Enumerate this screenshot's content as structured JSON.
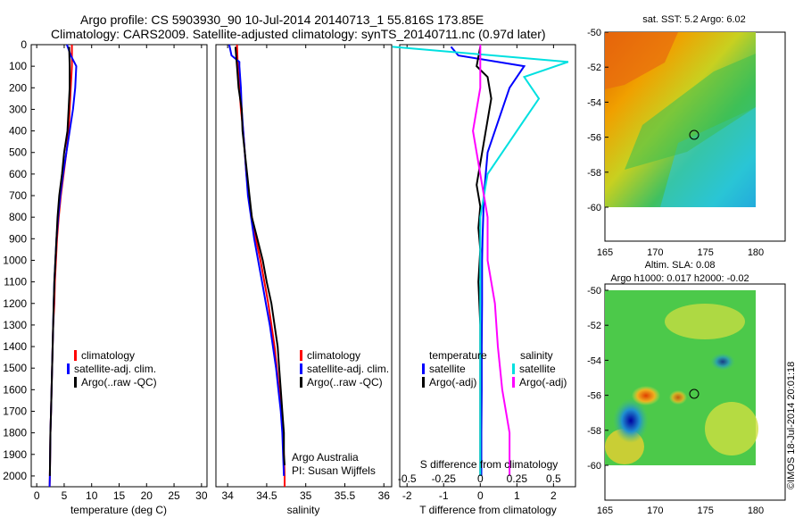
{
  "header": {
    "line1": "Argo profile: CS 5903930_90 10-Jul-2014 20140713_1 55.816S 173.85E",
    "line2": "Climatology: CARS2009. Satellite-adjusted climatology: synTS_20140711.nc (0.97d later)"
  },
  "colors": {
    "climatology": "#ff0000",
    "satellite": "#0000ff",
    "argo": "#000000",
    "sat_diff_s": "#00e0e0",
    "argo_diff_s": "#ff00ff"
  },
  "chart_data": [
    {
      "type": "line",
      "xlabel": "temperature (deg C)",
      "ylim": [
        2050,
        0
      ],
      "xlim": [
        -1,
        31
      ],
      "xticks": [
        0,
        5,
        10,
        15,
        20,
        25,
        30
      ],
      "yticks": [
        0,
        100,
        200,
        300,
        400,
        500,
        600,
        700,
        800,
        900,
        1000,
        1100,
        1200,
        1300,
        1400,
        1500,
        1600,
        1700,
        1800,
        1900,
        2000
      ],
      "legend": [
        "climatology",
        "satellite-adj. clim.",
        "Argo(..raw -QC)"
      ],
      "series": [
        {
          "name": "climatology",
          "color": "#ff0000",
          "points": [
            [
              6.4,
              0
            ],
            [
              6.4,
              100
            ],
            [
              6.2,
              200
            ],
            [
              6.0,
              300
            ],
            [
              5.8,
              400
            ],
            [
              5.4,
              500
            ],
            [
              4.9,
              600
            ],
            [
              4.4,
              700
            ],
            [
              4.0,
              800
            ],
            [
              3.7,
              900
            ],
            [
              3.5,
              1000
            ],
            [
              3.3,
              1100
            ],
            [
              3.2,
              1200
            ],
            [
              3.0,
              1300
            ],
            [
              2.9,
              1400
            ],
            [
              2.8,
              1500
            ],
            [
              2.7,
              1600
            ],
            [
              2.6,
              1700
            ],
            [
              2.5,
              1800
            ],
            [
              2.45,
              1900
            ],
            [
              2.4,
              2000
            ],
            [
              2.35,
              2050
            ]
          ]
        },
        {
          "name": "satellite-adj. clim.",
          "color": "#0000ff",
          "points": [
            [
              5.5,
              0
            ],
            [
              6.2,
              50
            ],
            [
              7.2,
              100
            ],
            [
              7.0,
              200
            ],
            [
              6.6,
              300
            ],
            [
              6.0,
              400
            ],
            [
              5.4,
              500
            ],
            [
              4.8,
              600
            ],
            [
              4.3,
              700
            ],
            [
              3.9,
              800
            ],
            [
              3.6,
              900
            ],
            [
              3.4,
              1000
            ],
            [
              3.2,
              1100
            ],
            [
              3.1,
              1200
            ],
            [
              3.0,
              1300
            ],
            [
              2.9,
              1400
            ],
            [
              2.8,
              1500
            ],
            [
              2.7,
              1600
            ],
            [
              2.6,
              1700
            ],
            [
              2.5,
              1800
            ],
            [
              2.45,
              1900
            ],
            [
              2.4,
              2000
            ],
            [
              2.35,
              2050
            ]
          ]
        },
        {
          "name": "Argo(..raw -QC)",
          "color": "#000000",
          "points": [
            [
              5.9,
              10
            ],
            [
              6.0,
              100
            ],
            [
              6.0,
              200
            ],
            [
              5.8,
              300
            ],
            [
              5.6,
              400
            ],
            [
              5.0,
              500
            ],
            [
              4.6,
              600
            ],
            [
              4.1,
              700
            ],
            [
              3.8,
              800
            ],
            [
              3.6,
              900
            ],
            [
              3.4,
              1000
            ],
            [
              3.2,
              1100
            ],
            [
              3.1,
              1200
            ],
            [
              3.0,
              1300
            ],
            [
              2.9,
              1400
            ],
            [
              2.8,
              1500
            ],
            [
              2.7,
              1600
            ],
            [
              2.6,
              1700
            ],
            [
              2.5,
              1800
            ],
            [
              2.45,
              1900
            ],
            [
              2.4,
              2000
            ]
          ]
        }
      ]
    },
    {
      "type": "line",
      "xlabel": "salinity",
      "ylim": [
        2050,
        0
      ],
      "xlim": [
        33.85,
        36.1
      ],
      "xticks": [
        34,
        34.5,
        35,
        35.5,
        36
      ],
      "legend": [
        "climatology",
        "satellite-adj. clim.",
        "Argo(..raw -QC)"
      ],
      "annotations": [
        "Argo Australia",
        "PI: Susan Wijffels"
      ],
      "series": [
        {
          "name": "climatology",
          "color": "#ff0000",
          "points": [
            [
              34.12,
              0
            ],
            [
              34.13,
              100
            ],
            [
              34.15,
              200
            ],
            [
              34.17,
              300
            ],
            [
              34.2,
              400
            ],
            [
              34.22,
              500
            ],
            [
              34.24,
              600
            ],
            [
              34.27,
              700
            ],
            [
              34.31,
              800
            ],
            [
              34.36,
              900
            ],
            [
              34.42,
              1000
            ],
            [
              34.47,
              1100
            ],
            [
              34.52,
              1200
            ],
            [
              34.56,
              1300
            ],
            [
              34.6,
              1400
            ],
            [
              34.63,
              1500
            ],
            [
              34.66,
              1600
            ],
            [
              34.69,
              1700
            ],
            [
              34.71,
              1800
            ],
            [
              34.72,
              1900
            ],
            [
              34.73,
              2000
            ],
            [
              34.73,
              2050
            ]
          ]
        },
        {
          "name": "satellite-adj. clim.",
          "color": "#0000ff",
          "points": [
            [
              34.02,
              0
            ],
            [
              34.05,
              50
            ],
            [
              34.15,
              80
            ],
            [
              34.15,
              100
            ],
            [
              34.17,
              200
            ],
            [
              34.18,
              300
            ],
            [
              34.2,
              400
            ],
            [
              34.22,
              500
            ],
            [
              34.24,
              600
            ],
            [
              34.26,
              700
            ],
            [
              34.3,
              800
            ],
            [
              34.34,
              900
            ],
            [
              34.39,
              1000
            ],
            [
              34.44,
              1100
            ],
            [
              34.49,
              1200
            ],
            [
              34.54,
              1300
            ],
            [
              34.58,
              1400
            ],
            [
              34.62,
              1500
            ],
            [
              34.65,
              1600
            ],
            [
              34.68,
              1700
            ],
            [
              34.7,
              1800
            ],
            [
              34.71,
              1900
            ],
            [
              34.72,
              2000
            ]
          ]
        },
        {
          "name": "Argo(..raw -QC)",
          "color": "#000000",
          "points": [
            [
              34.1,
              10
            ],
            [
              34.12,
              100
            ],
            [
              34.14,
              200
            ],
            [
              34.18,
              300
            ],
            [
              34.19,
              400
            ],
            [
              34.22,
              500
            ],
            [
              34.25,
              600
            ],
            [
              34.28,
              700
            ],
            [
              34.31,
              800
            ],
            [
              34.38,
              900
            ],
            [
              34.45,
              1000
            ],
            [
              34.5,
              1100
            ],
            [
              34.56,
              1200
            ],
            [
              34.6,
              1300
            ],
            [
              34.64,
              1400
            ],
            [
              34.66,
              1500
            ],
            [
              34.68,
              1600
            ],
            [
              34.7,
              1700
            ],
            [
              34.72,
              1800
            ],
            [
              34.72,
              1900
            ],
            [
              34.73,
              1950
            ]
          ]
        }
      ]
    },
    {
      "type": "line",
      "xlabel": "T difference from climatology",
      "xlabel_top": "S difference from climatology",
      "xlim": [
        -2.2,
        2.6
      ],
      "xticks": [
        -2,
        -1,
        0,
        1,
        2
      ],
      "xticks_s": [
        -0.5,
        -0.25,
        0,
        0.25,
        0.5
      ],
      "legend_headers": [
        "temperature",
        "salinity"
      ],
      "legend": [
        "satellite",
        "Argo(-adj)",
        "satellite",
        "Argo(-adj)"
      ],
      "series": [
        {
          "name": "satellite",
          "color": "#0000ff",
          "points": [
            [
              -0.8,
              10
            ],
            [
              -0.6,
              50
            ],
            [
              1.2,
              100
            ],
            [
              0.8,
              200
            ],
            [
              0.6,
              300
            ],
            [
              0.4,
              400
            ],
            [
              0.2,
              500
            ],
            [
              0.15,
              600
            ],
            [
              0.1,
              700
            ],
            [
              0.08,
              800
            ],
            [
              0.06,
              900
            ],
            [
              0.05,
              1000
            ],
            [
              0.05,
              1200
            ],
            [
              0.04,
              1400
            ],
            [
              0.04,
              1600
            ],
            [
              0.03,
              1800
            ],
            [
              0.03,
              2000
            ]
          ]
        },
        {
          "name": "Argo(-adj)",
          "color": "#000000",
          "points": [
            [
              0,
              10
            ],
            [
              -0.1,
              100
            ],
            [
              0.2,
              150
            ],
            [
              0.3,
              250
            ],
            [
              0.2,
              350
            ],
            [
              0.1,
              450
            ],
            [
              0.0,
              550
            ],
            [
              -0.1,
              650
            ],
            [
              0.0,
              750
            ],
            [
              -0.05,
              850
            ],
            [
              0.0,
              950
            ],
            [
              -0.05,
              1100
            ],
            [
              0.0,
              1300
            ],
            [
              0.0,
              1500
            ],
            [
              0.0,
              1700
            ],
            [
              0.0,
              1900
            ],
            [
              0.0,
              2000
            ]
          ]
        },
        {
          "name": "satellite",
          "color": "#00e0e0",
          "points": [
            [
              -0.6,
              10
            ],
            [
              0.6,
              80
            ],
            [
              0.3,
              150
            ],
            [
              0.4,
              250
            ],
            [
              0.3,
              350
            ],
            [
              0.2,
              450
            ],
            [
              0.05,
              600
            ],
            [
              0.0,
              800
            ],
            [
              0.0,
              1000
            ],
            [
              0.0,
              1200
            ],
            [
              0.0,
              1500
            ],
            [
              0.0,
              1800
            ],
            [
              0.0,
              2000
            ]
          ]
        },
        {
          "name": "Argo(-adj)",
          "color": "#ff00ff",
          "points": [
            [
              0.0,
              0
            ],
            [
              0.0,
              200
            ],
            [
              -0.05,
              400
            ],
            [
              0.0,
              600
            ],
            [
              0.05,
              800
            ],
            [
              0.05,
              1000
            ],
            [
              0.1,
              1200
            ],
            [
              0.12,
              1400
            ],
            [
              0.15,
              1600
            ],
            [
              0.2,
              1800
            ],
            [
              0.2,
              2000
            ]
          ]
        }
      ]
    },
    {
      "type": "heatmap",
      "title": "sat. SST: 5.2 Argo: 6.02",
      "xticks": [
        165,
        170,
        175,
        180
      ],
      "yticks": [
        -50,
        -52,
        -54,
        -56,
        -58,
        -60
      ],
      "marker": [
        173.85,
        -55.816
      ]
    },
    {
      "type": "heatmap",
      "title_line1": "Altim. SLA: 0.08",
      "title_line2": "Argo h1000: 0.017 h2000: -0.02",
      "xticks": [
        165,
        170,
        175,
        180
      ],
      "yticks": [
        -50,
        -52,
        -54,
        -56,
        -58,
        -60
      ],
      "marker": [
        173.85,
        -55.816
      ]
    }
  ],
  "stamp": "©IMOS 18-Jul-2014 20:01:18"
}
